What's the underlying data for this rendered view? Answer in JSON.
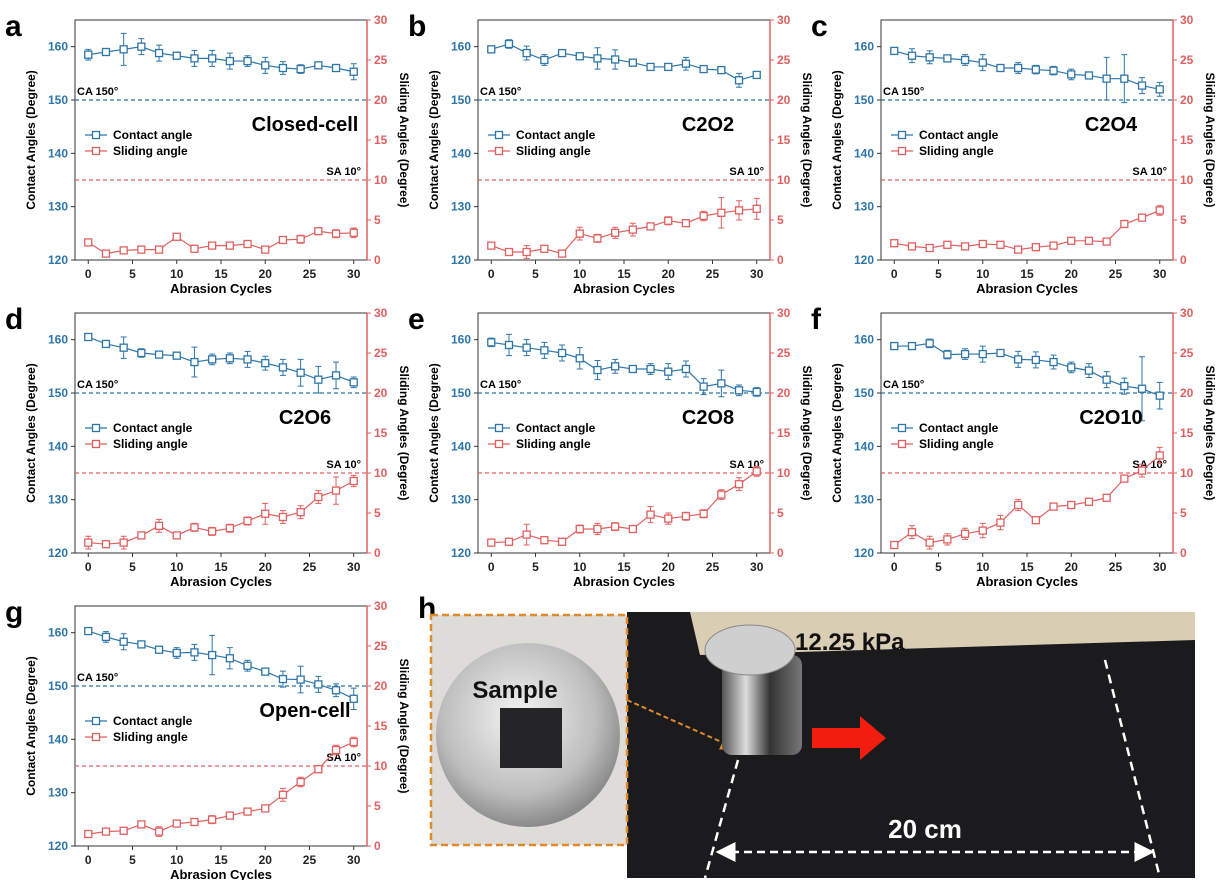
{
  "chart_data": [
    {
      "type": "line",
      "panel": "a",
      "name": "Closed-cell",
      "xlabel": "Abrasion Cycles",
      "ylabel": "Contact Angles (Degree)",
      "y2label": "Sliding Angles (Degree)",
      "x": [
        0,
        2,
        4,
        6,
        8,
        10,
        12,
        14,
        16,
        18,
        20,
        22,
        24,
        26,
        28,
        30
      ],
      "xlim": [
        -1.5,
        31.5
      ],
      "xticks": [
        0,
        5,
        10,
        15,
        20,
        25,
        30
      ],
      "ylim": [
        120,
        165
      ],
      "yticks": [
        120,
        130,
        140,
        150,
        160
      ],
      "y2lim": [
        0,
        30
      ],
      "y2ticks": [
        0,
        5,
        10,
        15,
        20,
        25,
        30
      ],
      "reference_lines": [
        {
          "label": "CA 150°",
          "value": 150,
          "color": "#2e75a8"
        },
        {
          "label": "SA 10°",
          "value": 10,
          "axis": "y2",
          "color": "#e06060"
        }
      ],
      "series": [
        {
          "name": "Contact angle",
          "color": "#2e75a8",
          "values": [
            158.5,
            159,
            159.5,
            160,
            158.8,
            158.3,
            157.8,
            157.8,
            157.3,
            157.3,
            156.5,
            156,
            155.8,
            156.5,
            156,
            155.3
          ],
          "errors": [
            1,
            0.5,
            3,
            1.5,
            1.5,
            0.3,
            1.5,
            1.5,
            1.5,
            1,
            1.5,
            1.2,
            0.8,
            0.5,
            0.5,
            1.5
          ]
        },
        {
          "name": "Sliding angle",
          "color": "#e06060",
          "axis": "y2",
          "values": [
            2.2,
            0.8,
            1.2,
            1.3,
            1.3,
            2.9,
            1.4,
            1.8,
            1.8,
            2,
            1.3,
            2.5,
            2.6,
            3.6,
            3.3,
            3.4
          ],
          "errors": [
            0.4,
            0.2,
            0.2,
            0.2,
            0.3,
            0.4,
            0.3,
            0.4,
            0.3,
            0.3,
            0.3,
            0.4,
            0.5,
            0.4,
            0.5,
            0.6
          ]
        }
      ]
    },
    {
      "type": "line",
      "panel": "b",
      "name": "C2O2",
      "xlabel": "Abrasion Cycles",
      "ylabel": "Contact Angles (Degree)",
      "y2label": "Sliding Angles (Degree)",
      "x": [
        0,
        2,
        4,
        6,
        8,
        10,
        12,
        14,
        16,
        18,
        20,
        22,
        24,
        26,
        28,
        30
      ],
      "xlim": [
        -1.5,
        31.5
      ],
      "xticks": [
        0,
        5,
        10,
        15,
        20,
        25,
        30
      ],
      "ylim": [
        120,
        165
      ],
      "yticks": [
        120,
        130,
        140,
        150,
        160
      ],
      "y2lim": [
        0,
        30
      ],
      "y2ticks": [
        0,
        5,
        10,
        15,
        20,
        25,
        30
      ],
      "reference_lines": [
        {
          "label": "CA 150°",
          "value": 150,
          "color": "#2e75a8"
        },
        {
          "label": "SA 10°",
          "value": 10,
          "axis": "y2",
          "color": "#e06060"
        }
      ],
      "series": [
        {
          "name": "Contact angle",
          "color": "#2e75a8",
          "values": [
            159.5,
            160.5,
            158.8,
            157.5,
            158.8,
            158.2,
            157.8,
            157.6,
            157,
            156.2,
            156.2,
            156.8,
            155.8,
            155.6,
            153.7,
            154.7
          ],
          "errors": [
            0.6,
            0.8,
            1.3,
            1,
            0.5,
            0.3,
            2,
            1.8,
            0.5,
            0.3,
            0.5,
            1.2,
            0.5,
            0.6,
            1.3,
            0.6
          ]
        },
        {
          "name": "Sliding angle",
          "color": "#e06060",
          "axis": "y2",
          "values": [
            1.8,
            1,
            1,
            1.4,
            0.8,
            3.3,
            2.7,
            3.4,
            3.8,
            4.2,
            4.9,
            4.6,
            5.5,
            5.9,
            6.2,
            6.4
          ],
          "errors": [
            0.3,
            0.3,
            0.8,
            0.4,
            0.3,
            0.8,
            0.5,
            0.7,
            0.8,
            0.3,
            0.5,
            0.4,
            0.6,
            1.9,
            1.2,
            1.3
          ]
        }
      ]
    },
    {
      "type": "line",
      "panel": "c",
      "name": "C2O4",
      "xlabel": "Abrasion Cycles",
      "ylabel": "Contact Angles (Degree)",
      "y2label": "Sliding Angles (Degree)",
      "x": [
        0,
        2,
        4,
        6,
        8,
        10,
        12,
        14,
        16,
        18,
        20,
        22,
        24,
        26,
        28,
        30
      ],
      "xlim": [
        -1.5,
        31.5
      ],
      "xticks": [
        0,
        5,
        10,
        15,
        20,
        25,
        30
      ],
      "ylim": [
        120,
        165
      ],
      "yticks": [
        120,
        130,
        140,
        150,
        160
      ],
      "y2lim": [
        0,
        30
      ],
      "y2ticks": [
        0,
        5,
        10,
        15,
        20,
        25,
        30
      ],
      "reference_lines": [
        {
          "label": "CA 150°",
          "value": 150,
          "color": "#2e75a8"
        },
        {
          "label": "SA 10°",
          "value": 10,
          "axis": "y2",
          "color": "#e06060"
        }
      ],
      "series": [
        {
          "name": "Contact angle",
          "color": "#2e75a8",
          "values": [
            159.2,
            158.3,
            158,
            157.8,
            157.5,
            157,
            156,
            156,
            155.7,
            155.5,
            154.8,
            154.6,
            154,
            154,
            152.7,
            152
          ],
          "errors": [
            0.6,
            1.3,
            1.2,
            0.3,
            1,
            1.5,
            0.3,
            1,
            0.8,
            0.8,
            1,
            0.5,
            4,
            4.5,
            1.5,
            1.3
          ]
        },
        {
          "name": "Sliding angle",
          "color": "#e06060",
          "axis": "y2",
          "values": [
            2.1,
            1.7,
            1.5,
            1.9,
            1.7,
            2,
            1.9,
            1.3,
            1.6,
            1.8,
            2.4,
            2.4,
            2.3,
            4.5,
            5.3,
            6.2
          ],
          "errors": [
            0.3,
            0.2,
            0.2,
            0.4,
            0.2,
            0.3,
            0.3,
            0.3,
            0.3,
            0.3,
            0.3,
            0.2,
            0.4,
            0.4,
            0.4,
            0.6
          ]
        }
      ]
    },
    {
      "type": "line",
      "panel": "d",
      "name": "C2O6",
      "xlabel": "Abrasion Cycles",
      "ylabel": "Contact Angles (Degree)",
      "y2label": "Sliding Angles (Degree)",
      "x": [
        0,
        2,
        4,
        6,
        8,
        10,
        12,
        14,
        16,
        18,
        20,
        22,
        24,
        26,
        28,
        30
      ],
      "xlim": [
        -1.5,
        31.5
      ],
      "xticks": [
        0,
        5,
        10,
        15,
        20,
        25,
        30
      ],
      "ylim": [
        120,
        165
      ],
      "yticks": [
        120,
        130,
        140,
        150,
        160
      ],
      "y2lim": [
        0,
        30
      ],
      "y2ticks": [
        0,
        5,
        10,
        15,
        20,
        25,
        30
      ],
      "reference_lines": [
        {
          "label": "CA 150°",
          "value": 150,
          "color": "#2e75a8"
        },
        {
          "label": "SA 10°",
          "value": 10,
          "axis": "y2",
          "color": "#e06060"
        }
      ],
      "series": [
        {
          "name": "Contact angle",
          "color": "#2e75a8",
          "values": [
            160.5,
            159.2,
            158.5,
            157.5,
            157.2,
            157,
            155.8,
            156.3,
            156.5,
            156.3,
            155.6,
            154.8,
            153.8,
            152.5,
            153.3,
            152
          ],
          "errors": [
            0.4,
            0.5,
            2,
            0.8,
            0.6,
            0.3,
            2.8,
            1,
            1,
            1.5,
            1.3,
            1.5,
            2.5,
            2.5,
            2.5,
            1
          ]
        },
        {
          "name": "Sliding angle",
          "color": "#e06060",
          "axis": "y2",
          "values": [
            1.3,
            1.1,
            1.3,
            2.2,
            3.4,
            2.2,
            3.2,
            2.7,
            3.1,
            4,
            4.9,
            4.5,
            5.1,
            7,
            7.8,
            9
          ],
          "errors": [
            0.8,
            0.4,
            0.8,
            0.3,
            0.8,
            0.3,
            0.5,
            0.5,
            0.5,
            0.5,
            1.3,
            0.8,
            0.8,
            0.8,
            1.7,
            0.7
          ]
        }
      ]
    },
    {
      "type": "line",
      "panel": "e",
      "name": "C2O8",
      "xlabel": "Abrasion Cycles",
      "ylabel": "Contact Angles (Degree)",
      "y2label": "Sliding Angles (Degree)",
      "x": [
        0,
        2,
        4,
        6,
        8,
        10,
        12,
        14,
        16,
        18,
        20,
        22,
        24,
        26,
        28,
        30
      ],
      "xlim": [
        -1.5,
        31.5
      ],
      "xticks": [
        0,
        5,
        10,
        15,
        20,
        25,
        30
      ],
      "ylim": [
        120,
        165
      ],
      "yticks": [
        120,
        130,
        140,
        150,
        160
      ],
      "y2lim": [
        0,
        30
      ],
      "y2ticks": [
        0,
        5,
        10,
        15,
        20,
        25,
        30
      ],
      "reference_lines": [
        {
          "label": "CA 150°",
          "value": 150,
          "color": "#2e75a8"
        },
        {
          "label": "SA 10°",
          "value": 10,
          "axis": "y2",
          "color": "#e06060"
        }
      ],
      "series": [
        {
          "name": "Contact angle",
          "color": "#2e75a8",
          "values": [
            159.5,
            159,
            158.5,
            158,
            157.5,
            156.5,
            154.3,
            155,
            154.5,
            154.5,
            154,
            154.5,
            151.2,
            151.8,
            150.5,
            150.2
          ],
          "errors": [
            0.8,
            2,
            1.5,
            1.5,
            1.5,
            2,
            1.8,
            1.3,
            0.3,
            1,
            1.5,
            1.5,
            1.5,
            2.5,
            1,
            0.8
          ]
        },
        {
          "name": "Sliding angle",
          "color": "#e06060",
          "axis": "y2",
          "values": [
            1.3,
            1.4,
            2.3,
            1.6,
            1.4,
            3,
            3,
            3.3,
            3,
            4.8,
            4.3,
            4.6,
            4.9,
            7.3,
            8.6,
            10.2
          ],
          "errors": [
            0.2,
            0.2,
            1.3,
            0.3,
            0.2,
            0.5,
            0.7,
            0.5,
            0.3,
            1,
            0.7,
            0.5,
            0.5,
            0.6,
            0.8,
            0.6
          ]
        }
      ]
    },
    {
      "type": "line",
      "panel": "f",
      "name": "C2O10",
      "xlabel": "Abrasion Cycles",
      "ylabel": "Contact Angles (Degree)",
      "y2label": "Sliding Angles (Degree)",
      "x": [
        0,
        2,
        4,
        6,
        8,
        10,
        12,
        14,
        16,
        18,
        20,
        22,
        24,
        26,
        28,
        30
      ],
      "xlim": [
        -1.5,
        31.5
      ],
      "xticks": [
        0,
        5,
        10,
        15,
        20,
        25,
        30
      ],
      "ylim": [
        120,
        165
      ],
      "yticks": [
        120,
        130,
        140,
        150,
        160
      ],
      "y2lim": [
        0,
        30
      ],
      "y2ticks": [
        0,
        5,
        10,
        15,
        20,
        25,
        30
      ],
      "reference_lines": [
        {
          "label": "CA 150°",
          "value": 150,
          "color": "#2e75a8"
        },
        {
          "label": "SA 10°",
          "value": 10,
          "axis": "y2",
          "color": "#e06060"
        }
      ],
      "series": [
        {
          "name": "Contact angle",
          "color": "#2e75a8",
          "values": [
            158.8,
            158.8,
            159.3,
            157.2,
            157.3,
            157.3,
            157.5,
            156.3,
            156.2,
            155.8,
            154.8,
            154.2,
            152.5,
            151.3,
            150.8,
            149.5
          ],
          "errors": [
            0.3,
            0.3,
            0.8,
            0.8,
            1,
            1.5,
            0.5,
            1.5,
            1.5,
            1.3,
            1,
            1.3,
            1.5,
            1.5,
            6,
            2.5
          ]
        },
        {
          "name": "Sliding angle",
          "color": "#e06060",
          "axis": "y2",
          "values": [
            1,
            2.6,
            1.3,
            1.7,
            2.4,
            2.8,
            3.8,
            6,
            4.1,
            5.8,
            6,
            6.4,
            6.9,
            9.3,
            10.3,
            12.2
          ],
          "errors": [
            0.4,
            0.8,
            0.8,
            0.7,
            0.7,
            0.9,
            0.9,
            0.7,
            0.4,
            0.4,
            0.3,
            0.3,
            0.3,
            0.4,
            0.8,
            1
          ]
        }
      ]
    },
    {
      "type": "line",
      "panel": "g",
      "name": "Open-cell",
      "xlabel": "Abrasion Cycles",
      "ylabel": "Contact Angles (Degree)",
      "y2label": "Sliding Angles (Degree)",
      "x": [
        0,
        2,
        4,
        6,
        8,
        10,
        12,
        14,
        16,
        18,
        20,
        22,
        24,
        26,
        28,
        30
      ],
      "xlim": [
        -1.5,
        31.5
      ],
      "xticks": [
        0,
        5,
        10,
        15,
        20,
        25,
        30
      ],
      "ylim": [
        120,
        165
      ],
      "yticks": [
        120,
        130,
        140,
        150,
        160
      ],
      "y2lim": [
        0,
        30
      ],
      "y2ticks": [
        0,
        5,
        10,
        15,
        20,
        25,
        30
      ],
      "reference_lines": [
        {
          "label": "CA 150°",
          "value": 150,
          "color": "#2e75a8"
        },
        {
          "label": "SA 10°",
          "value": 10,
          "axis": "y2",
          "color": "#e06060"
        }
      ],
      "series": [
        {
          "name": "Contact angle",
          "color": "#2e75a8",
          "values": [
            160.3,
            159.2,
            158.3,
            157.8,
            156.8,
            156.2,
            156.3,
            155.8,
            155.2,
            153.8,
            152.7,
            151.3,
            151.2,
            150.3,
            149.2,
            147.6
          ],
          "errors": [
            0.6,
            1,
            1.5,
            0.6,
            0.3,
            1,
            1.5,
            3.7,
            2,
            1,
            0.4,
            1.5,
            2.5,
            1.5,
            1.2,
            2
          ]
        },
        {
          "name": "Sliding angle",
          "color": "#e06060",
          "axis": "y2",
          "values": [
            1.5,
            1.8,
            1.9,
            2.7,
            1.8,
            2.8,
            3,
            3.3,
            3.8,
            4.3,
            4.7,
            6.4,
            8,
            9.6,
            12,
            13
          ],
          "errors": [
            0.2,
            0.3,
            0.3,
            0.3,
            0.6,
            0.3,
            0.3,
            0.5,
            0.3,
            0.3,
            0.3,
            0.8,
            0.6,
            0.3,
            0.6,
            0.6
          ]
        }
      ]
    }
  ],
  "photo": {
    "panel": "h",
    "weight_label": "12.25 kPa",
    "sample_label": "Sample",
    "distance_label": "20 cm"
  }
}
